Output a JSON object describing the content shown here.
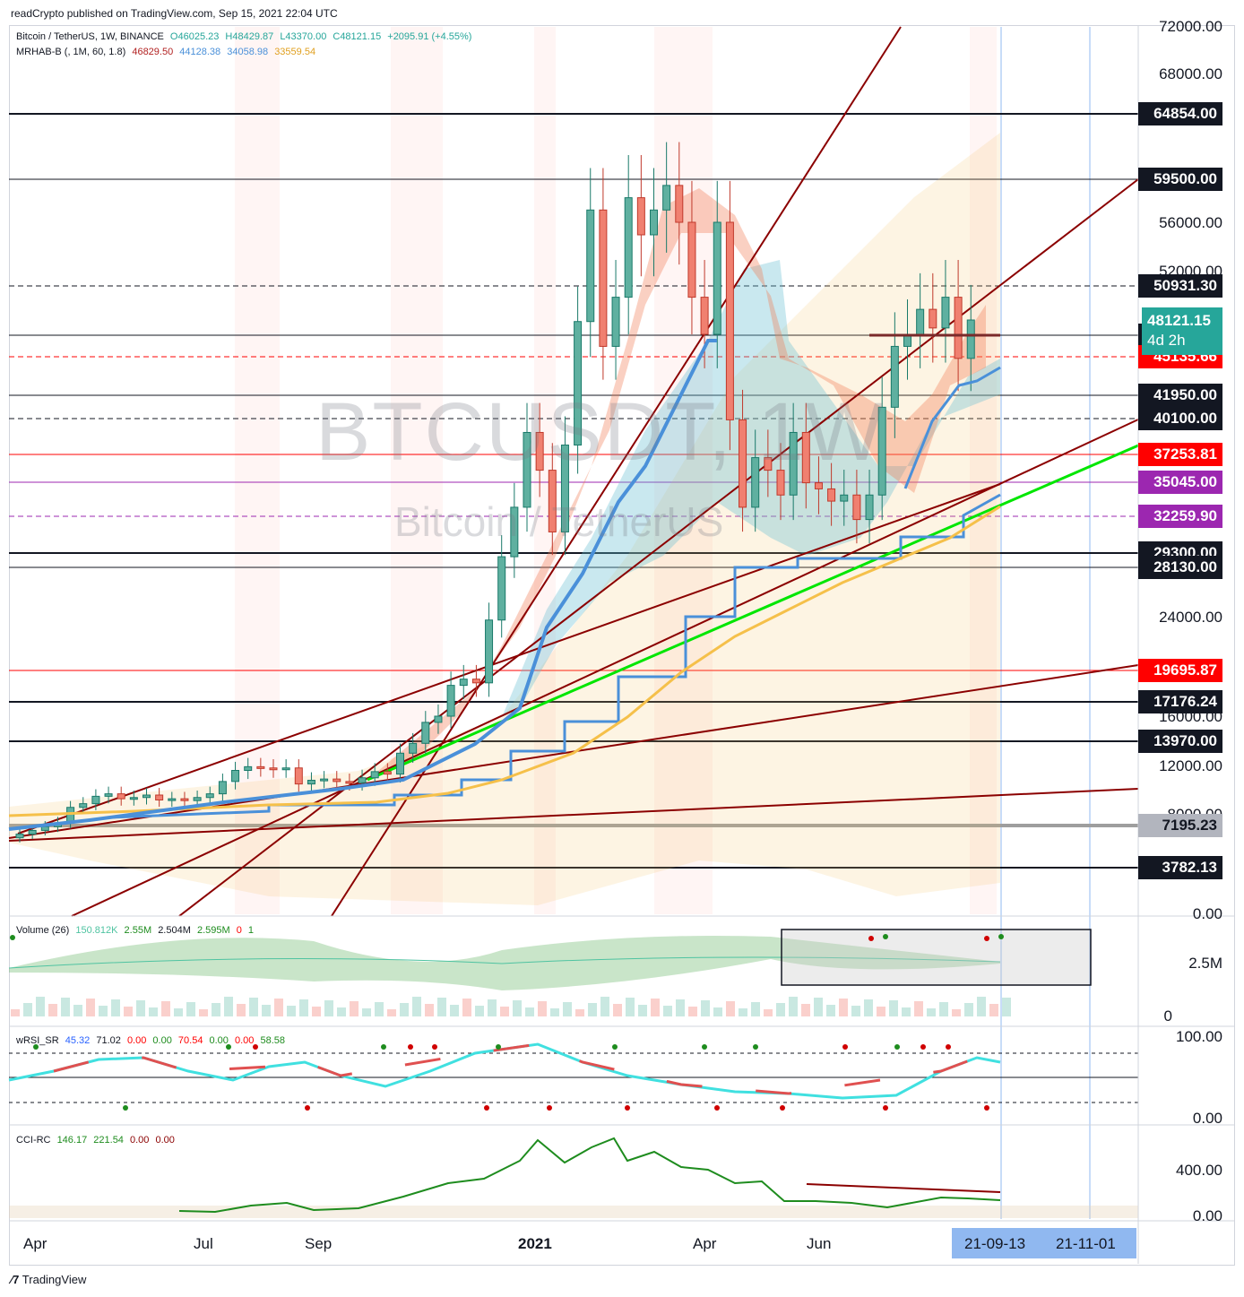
{
  "publisher": "readCrypto published on TradingView.com, Sep 15, 2021 22:04 UTC",
  "footer_brand": "TradingView",
  "watermark": {
    "symbol": "BTCUSDT, 1W",
    "name": "Bitcoin / TetherUS"
  },
  "symbol_legend": {
    "title": "Bitcoin / TetherUS, 1W, BINANCE",
    "open": "O46025.23",
    "high": "H48429.87",
    "low": "L43370.00",
    "close": "C48121.15",
    "change": "+2095.91 (+4.55%)"
  },
  "indicator_legend": {
    "name": "MRHAB-B (, 1M, 60, 1.8)",
    "v1": "46829.50",
    "v2": "44128.38",
    "v3": "34058.98",
    "v4": "33559.54"
  },
  "volume_legend": {
    "name": "Volume (26)",
    "v1": "150.812K",
    "v2": "2.55M",
    "v3": "2.504M",
    "v4": "2.595M",
    "v5": "0",
    "v6": "1"
  },
  "wrsi_legend": {
    "name": "wRSI_SR",
    "v1": "45.32",
    "v2": "71.02",
    "v3": "0.00",
    "v4": "0.00",
    "v5": "70.54",
    "v6": "0.00",
    "v7": "0.00",
    "v8": "58.58"
  },
  "cci_legend": {
    "name": "CCI-RC",
    "v1": "146.17",
    "v2": "221.54",
    "v3": "0.00",
    "v4": "0.00"
  },
  "price_axis_ticks": [
    "72000.00",
    "68000.00",
    "56000.00",
    "52000.00",
    "24000.00",
    "16000.00",
    "12000.00",
    "8000.00",
    "0.00"
  ],
  "volume_axis_ticks": [
    "2.5M",
    "0"
  ],
  "wrsi_axis_ticks": [
    "100.00",
    "0.00"
  ],
  "cci_axis_ticks": [
    "400.00",
    "0.00"
  ],
  "time_axis": [
    "Apr",
    "Jul",
    "Sep",
    "2021",
    "Apr",
    "Jun"
  ],
  "time_axis_highlight": [
    "21-09-13",
    "21-11-01"
  ],
  "current_price": {
    "value": "48121.15",
    "countdown": "4d 2h"
  },
  "price_levels": [
    {
      "label": "64854.00",
      "color": "#131722",
      "text": "#ffffff"
    },
    {
      "label": "59500.00",
      "color": "#131722",
      "text": "#ffffff"
    },
    {
      "label": "50931.30",
      "color": "#131722",
      "text": "#ffffff"
    },
    {
      "label": "46930.00",
      "color": "#131722",
      "text": "#ffffff"
    },
    {
      "label": "45135.66",
      "color": "#ff0000",
      "text": "#ffffff"
    },
    {
      "label": "41950.00",
      "color": "#131722",
      "text": "#ffffff"
    },
    {
      "label": "40100.00",
      "color": "#131722",
      "text": "#ffffff"
    },
    {
      "label": "37253.81",
      "color": "#ff0000",
      "text": "#ffffff"
    },
    {
      "label": "35045.00",
      "color": "#9c27b0",
      "text": "#ffffff"
    },
    {
      "label": "32259.90",
      "color": "#9c27b0",
      "text": "#ffffff"
    },
    {
      "label": "29300.00",
      "color": "#131722",
      "text": "#ffffff"
    },
    {
      "label": "28130.00",
      "color": "#131722",
      "text": "#ffffff"
    },
    {
      "label": "19695.87",
      "color": "#ff0000",
      "text": "#ffffff"
    },
    {
      "label": "17176.24",
      "color": "#131722",
      "text": "#ffffff"
    },
    {
      "label": "13970.00",
      "color": "#131722",
      "text": "#ffffff"
    },
    {
      "label": "7195.23",
      "color": "#b2b5be",
      "text": "#131722"
    },
    {
      "label": "3782.13",
      "color": "#131722",
      "text": "#ffffff"
    }
  ],
  "colors": {
    "up": "#26a69a",
    "down": "#ef5350",
    "ma_blue": "#4a90d9",
    "ma_orange": "#f5c04a",
    "trend_red": "#8b0000",
    "trend_green": "#00e600"
  },
  "chart_data": {
    "type": "candlestick",
    "symbol": "Bitcoin / TetherUS",
    "interval": "1W",
    "exchange": "BINANCE",
    "ylim": [
      0,
      72000
    ],
    "x": [
      "2020-03",
      "2020-04",
      "2020-05",
      "2020-06",
      "2020-07",
      "2020-08",
      "2020-09",
      "2020-10",
      "2020-11",
      "2020-12",
      "2021-01",
      "2021-02",
      "2021-03",
      "2021-04",
      "2021-05",
      "2021-06",
      "2021-07",
      "2021-08",
      "2021-09"
    ],
    "series": [
      {
        "values": [
          6400,
          7000,
          8800,
          9500,
          9300,
          11500,
          11600,
          10800,
          13800,
          19500,
          29000,
          38000,
          48000,
          58000,
          50000,
          35000,
          34000,
          40000,
          48121
        ]
      }
    ],
    "horizontal_levels": [
      64854,
      59500,
      50931.3,
      46930,
      45135.66,
      41950,
      40100,
      37253.81,
      35045,
      32259.9,
      29300,
      28130,
      19695.87,
      17176.24,
      13970,
      7195.23,
      3782.13
    ],
    "last_close": 48121.15
  }
}
